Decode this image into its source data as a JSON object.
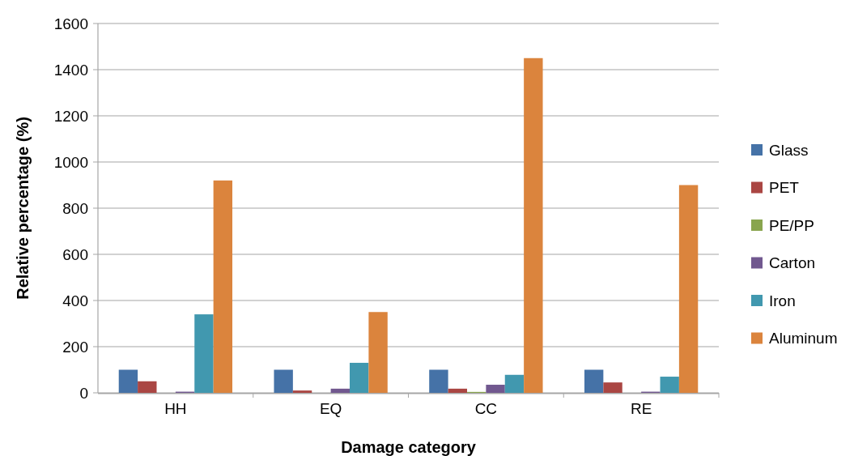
{
  "chart_data": {
    "type": "bar",
    "xlabel": "Damage category",
    "ylabel": "Relative percentage (%)",
    "categories": [
      "HH",
      "EQ",
      "CC",
      "RE"
    ],
    "series": [
      {
        "name": "Glass",
        "color": "#4572a7",
        "values": [
          100,
          100,
          100,
          100
        ]
      },
      {
        "name": "PET",
        "color": "#aa4643",
        "values": [
          50,
          10,
          18,
          45
        ]
      },
      {
        "name": "PE/PP",
        "color": "#89a54e",
        "values": [
          0,
          0,
          4,
          0
        ]
      },
      {
        "name": "Carton",
        "color": "#71588f",
        "values": [
          5,
          18,
          35,
          5
        ]
      },
      {
        "name": "Iron",
        "color": "#4198af",
        "values": [
          340,
          130,
          78,
          70
        ]
      },
      {
        "name": "Aluminum",
        "color": "#db843d",
        "values": [
          920,
          350,
          1450,
          900
        ]
      }
    ],
    "ylim": [
      0,
      1600
    ],
    "yticks": [
      0,
      200,
      400,
      600,
      800,
      1000,
      1200,
      1400,
      1600
    ],
    "grid": "y",
    "legend": "right"
  }
}
